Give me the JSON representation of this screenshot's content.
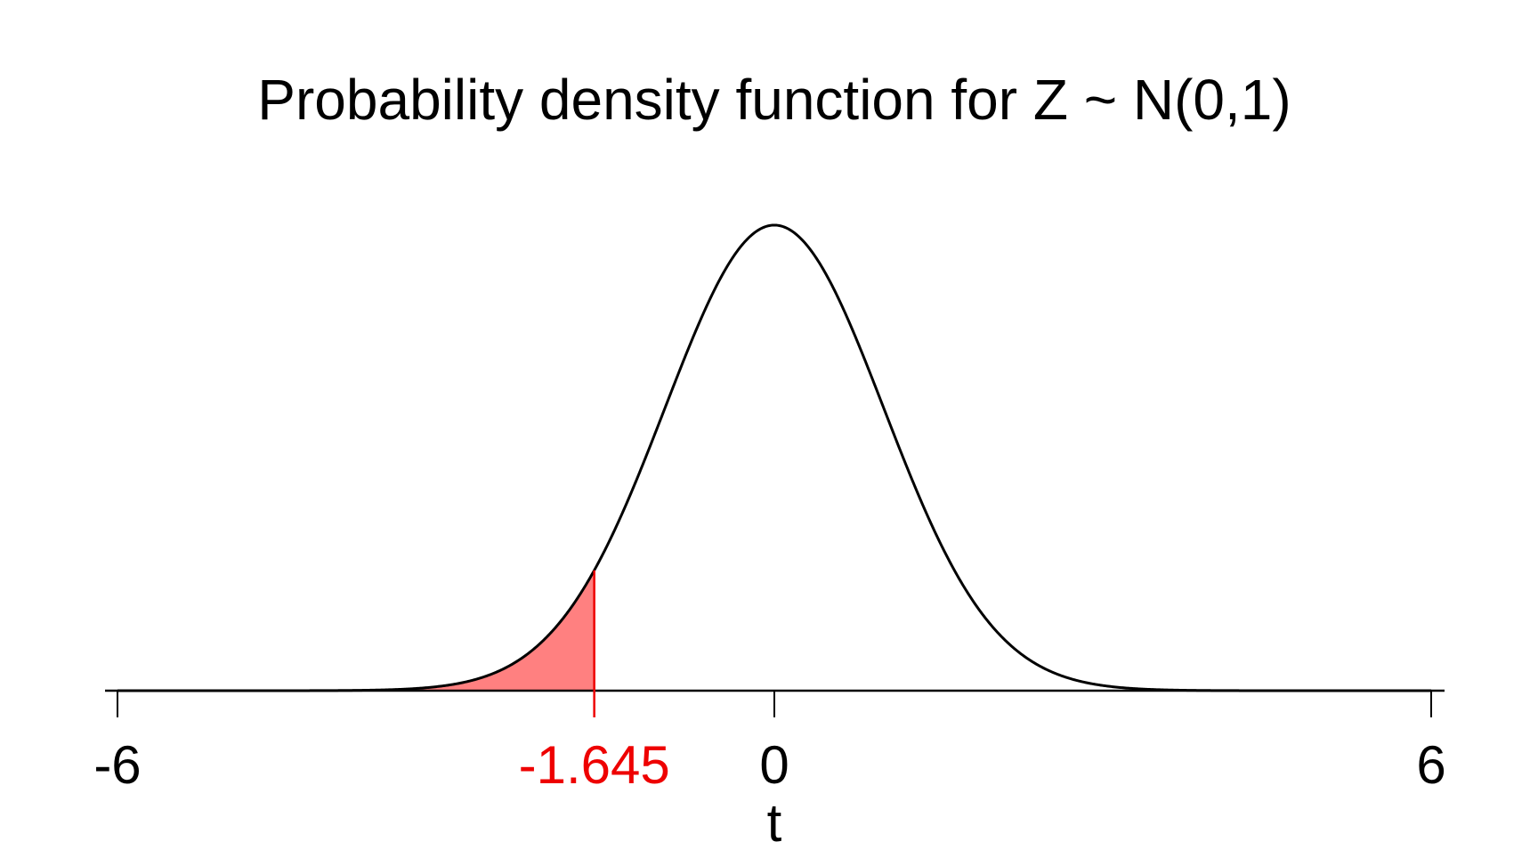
{
  "chart_data": {
    "type": "area",
    "title": "Probability density function for Z ~ N(0,1)",
    "xlabel": "t",
    "ylabel": "",
    "xlim": [
      -6,
      6
    ],
    "ylim": [
      0,
      0.3989
    ],
    "grid": false,
    "distribution": {
      "name": "normal",
      "mean": 0,
      "sd": 1
    },
    "x_ticks": [
      {
        "value": -6,
        "label": "-6"
      },
      {
        "value": 0,
        "label": "0"
      },
      {
        "value": 6,
        "label": "6"
      }
    ],
    "critical_value": {
      "value": -1.645,
      "label": "-1.645",
      "color": "#ee0000"
    },
    "shaded_region": {
      "from": -6,
      "to": -1.645,
      "fill": "#ff8080"
    },
    "colors": {
      "curve": "#000000",
      "axis": "#000000",
      "critical": "#ee0000",
      "shade": "#ff8080"
    }
  }
}
